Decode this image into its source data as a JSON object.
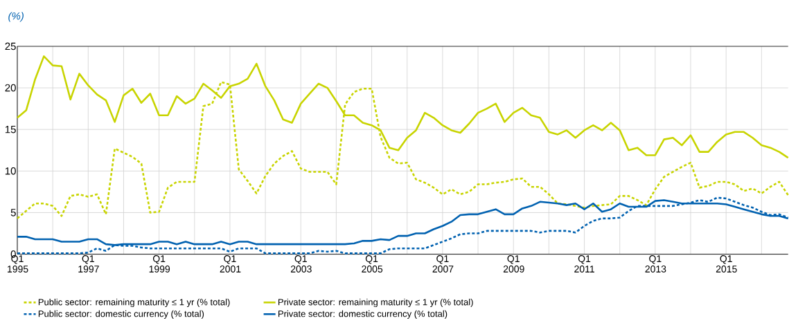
{
  "chart_data": {
    "type": "line",
    "ylabel": "(%)",
    "categories": [
      "Q1 1995",
      null,
      null,
      null,
      null,
      null,
      null,
      null,
      "Q1 1997",
      null,
      null,
      null,
      null,
      null,
      null,
      null,
      "Q1 1999",
      null,
      null,
      null,
      null,
      null,
      null,
      null,
      "Q1 2001",
      null,
      null,
      null,
      null,
      null,
      null,
      null,
      "Q1 2003",
      null,
      null,
      null,
      null,
      null,
      null,
      null,
      "Q1 2005",
      null,
      null,
      null,
      null,
      null,
      null,
      null,
      "Q1 2007",
      null,
      null,
      null,
      null,
      null,
      null,
      null,
      "Q1 2009",
      null,
      null,
      null,
      null,
      null,
      null,
      null,
      "Q1 2011",
      null,
      null,
      null,
      null,
      null,
      null,
      null,
      "Q1 2013",
      null,
      null,
      null,
      null,
      null,
      null,
      null,
      "Q1 2015",
      null,
      null,
      null,
      null,
      null,
      null,
      null
    ],
    "series": [
      {
        "name": "Public sector: remaining maturity ≤ 1 yr (% total)",
        "color": "#c8d400",
        "line_style": "dotted",
        "values": [
          4.3,
          5.2,
          6.1,
          6.1,
          5.8,
          4.6,
          7.0,
          7.2,
          6.9,
          7.2,
          4.8,
          12.7,
          12.2,
          11.7,
          10.9,
          5.0,
          5.1,
          8.0,
          8.7,
          8.7,
          8.7,
          17.8,
          18.1,
          20.7,
          20.4,
          10.2,
          8.8,
          7.3,
          9.4,
          10.9,
          11.8,
          12.4,
          10.3,
          9.9,
          9.9,
          9.9,
          8.4,
          18.0,
          19.5,
          19.9,
          19.9,
          14.1,
          11.6,
          10.9,
          11.0,
          9.0,
          8.6,
          8.0,
          7.2,
          7.8,
          7.2,
          7.5,
          8.4,
          8.4,
          8.6,
          8.7,
          9.0,
          9.1,
          8.1,
          8.1,
          7.2,
          6.1,
          6.0,
          5.8,
          5.6,
          5.8,
          5.9,
          6.0,
          7.0,
          7.0,
          6.5,
          5.9,
          7.8,
          9.3,
          9.9,
          10.5,
          11.0,
          8.0,
          8.2,
          8.7,
          8.7,
          8.4,
          7.6,
          7.9,
          7.3,
          8.1,
          8.7,
          7.1
        ]
      },
      {
        "name": "Private sector: remaining maturity ≤ 1 yr (% total)",
        "color": "#c8d400",
        "line_style": "solid",
        "values": [
          16.4,
          17.3,
          21.0,
          23.8,
          22.7,
          22.6,
          18.6,
          21.7,
          20.3,
          19.2,
          18.5,
          15.9,
          19.1,
          19.9,
          18.2,
          19.3,
          16.7,
          16.7,
          19.0,
          18.1,
          18.7,
          20.5,
          19.7,
          18.8,
          20.2,
          20.5,
          21.1,
          22.9,
          20.2,
          18.5,
          16.2,
          15.8,
          18.1,
          19.3,
          20.5,
          20.0,
          18.4,
          16.7,
          16.7,
          15.8,
          15.5,
          14.9,
          12.8,
          12.5,
          14.0,
          14.9,
          17.0,
          16.4,
          15.5,
          14.9,
          14.6,
          15.7,
          17.0,
          17.5,
          18.1,
          15.9,
          17.0,
          17.6,
          16.7,
          16.4,
          14.7,
          14.4,
          14.9,
          14.0,
          14.9,
          15.5,
          14.9,
          15.8,
          14.9,
          12.5,
          12.8,
          11.9,
          11.9,
          13.8,
          14.0,
          13.1,
          14.3,
          12.3,
          12.3,
          13.5,
          14.4,
          14.7,
          14.7,
          14.0,
          13.1,
          12.8,
          12.3,
          11.6
        ]
      },
      {
        "name": "Public sector: domestic currency (% total)",
        "color": "#0061b0",
        "line_style": "dotted",
        "values": [
          0.1,
          0.1,
          0.1,
          0.1,
          0.1,
          0.1,
          0.1,
          0.1,
          0.2,
          0.7,
          0.4,
          1.1,
          1.0,
          1.0,
          0.8,
          0.7,
          0.7,
          0.7,
          0.7,
          0.7,
          0.7,
          0.7,
          0.7,
          0.7,
          0.3,
          0.7,
          0.7,
          0.7,
          0.1,
          0.1,
          0.1,
          0.1,
          0.1,
          0.1,
          0.4,
          0.3,
          0.4,
          0.1,
          0.1,
          0.1,
          0.1,
          0.1,
          0.6,
          0.7,
          0.7,
          0.7,
          0.7,
          1.1,
          1.5,
          1.9,
          2.4,
          2.5,
          2.5,
          2.8,
          2.8,
          2.8,
          2.8,
          2.8,
          2.8,
          2.6,
          2.8,
          2.8,
          2.8,
          2.6,
          3.4,
          4.0,
          4.3,
          4.3,
          4.4,
          5.2,
          5.8,
          5.8,
          5.8,
          5.8,
          5.8,
          6.0,
          6.2,
          6.5,
          6.3,
          6.8,
          6.7,
          6.3,
          5.9,
          5.6,
          5.1,
          4.7,
          4.8,
          4.4
        ]
      },
      {
        "name": "Private sector: domestic currency (% total)",
        "color": "#0061b0",
        "line_style": "solid",
        "values": [
          2.1,
          2.1,
          1.8,
          1.8,
          1.8,
          1.5,
          1.5,
          1.5,
          1.8,
          1.8,
          1.2,
          1.1,
          1.2,
          1.2,
          1.2,
          1.2,
          1.5,
          1.5,
          1.2,
          1.5,
          1.2,
          1.2,
          1.2,
          1.5,
          1.2,
          1.5,
          1.5,
          1.2,
          1.2,
          1.2,
          1.2,
          1.2,
          1.2,
          1.2,
          1.2,
          1.2,
          1.2,
          1.2,
          1.3,
          1.6,
          1.6,
          1.8,
          1.7,
          2.2,
          2.2,
          2.5,
          2.5,
          3.0,
          3.4,
          3.9,
          4.7,
          4.8,
          4.8,
          5.1,
          5.4,
          4.8,
          4.8,
          5.5,
          5.8,
          6.3,
          6.2,
          6.1,
          5.9,
          6.1,
          5.4,
          6.1,
          5.1,
          5.4,
          6.1,
          5.7,
          5.7,
          5.7,
          6.4,
          6.5,
          6.3,
          6.1,
          6.1,
          6.1,
          6.1,
          6.1,
          6.0,
          5.7,
          5.4,
          5.1,
          4.8,
          4.6,
          4.6,
          4.3
        ]
      }
    ],
    "ylim": [
      0,
      25
    ],
    "yticks": [
      0,
      5,
      10,
      15,
      20,
      25
    ],
    "grid": true,
    "legend": "bottom",
    "marker": "none"
  }
}
